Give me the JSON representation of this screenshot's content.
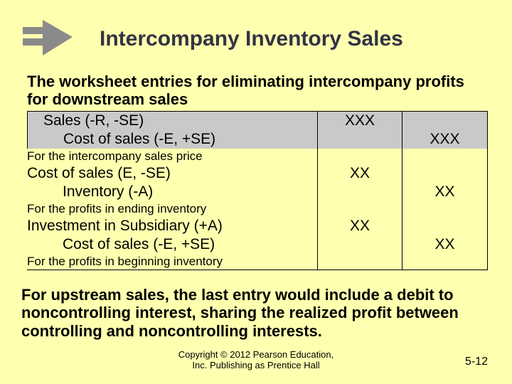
{
  "title": "Intercompany Inventory Sales",
  "intro_text": "The worksheet entries for eliminating intercompany profits for downstream sales",
  "entries": [
    {
      "type": "entry",
      "desc": "Sales (-R, -SE)",
      "dr": "XXX",
      "cr": "",
      "indent": 1,
      "gray": true,
      "top": true
    },
    {
      "type": "entry",
      "desc": "Cost of sales (-E, +SE)",
      "dr": "",
      "cr": "XXX",
      "indent": 2,
      "gray": true
    },
    {
      "type": "note",
      "desc": "For the intercompany sales price"
    },
    {
      "type": "entry",
      "desc": "Cost of sales (E, -SE)",
      "dr": "XX",
      "cr": "",
      "indent": 0
    },
    {
      "type": "entry",
      "desc": "Inventory (-A)",
      "dr": "",
      "cr": "XX",
      "indent": 2
    },
    {
      "type": "note",
      "desc": "For the profits in ending inventory"
    },
    {
      "type": "entry",
      "desc": "Investment in Subsidiary (+A)",
      "dr": "XX",
      "cr": "",
      "indent": 0
    },
    {
      "type": "entry",
      "desc": "Cost of sales (-E, +SE)",
      "dr": "",
      "cr": "XX",
      "indent": 2
    },
    {
      "type": "note",
      "desc": "For the profits in beginning inventory",
      "bottom": true
    }
  ],
  "outro_text": "For upstream sales, the last entry would include a debit to noncontrolling interest, sharing the realized profit between controlling and noncontrolling interests.",
  "copyright_line1": "Copyright © 2012 Pearson Education,",
  "copyright_line2": "Inc. Publishing as Prentice Hall",
  "page_number": "5-12",
  "colors": {
    "background": "#ffffb0",
    "title_color": "#333344",
    "gray_row": "#c9c9c9",
    "arrow_fill": "#8a8a8a"
  }
}
